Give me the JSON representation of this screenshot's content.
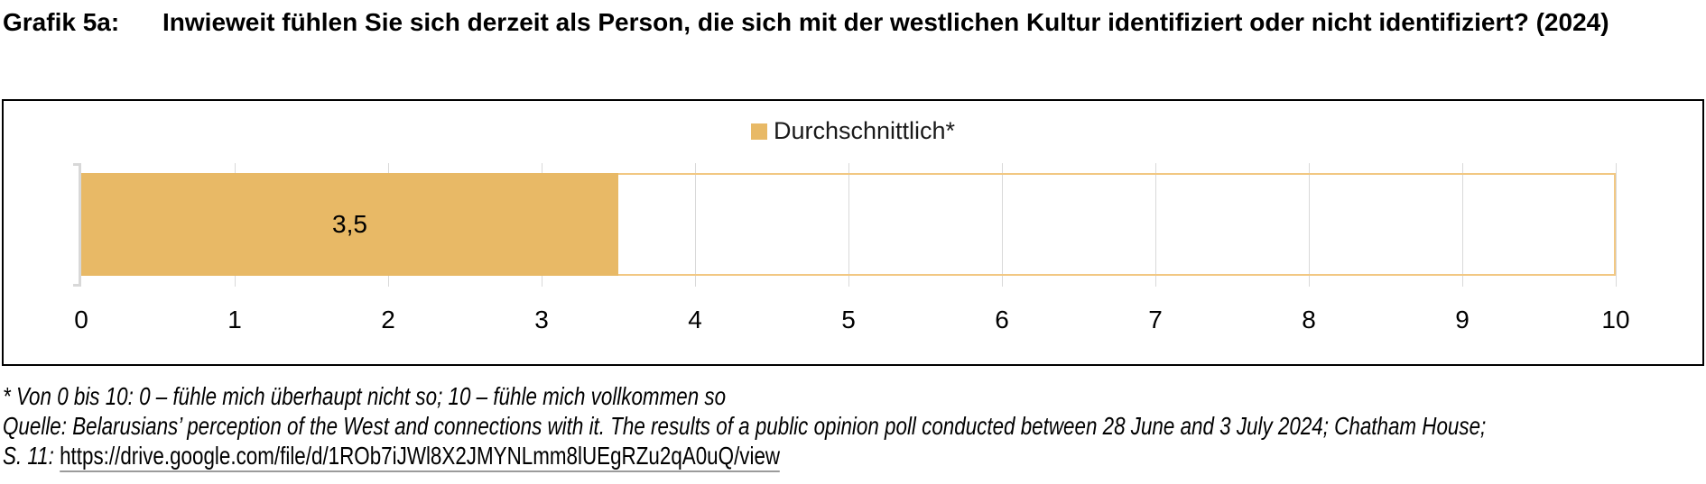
{
  "figure": {
    "label": "Grafik 5a:",
    "title": "Inwieweit fühlen Sie sich derzeit als Person, die sich mit der westlichen Kultur identifiziert oder nicht identifiziert? (2024)"
  },
  "legend": {
    "label": "Durchschnittlich*",
    "swatch_color": "#E8B966"
  },
  "chart_data": {
    "type": "bar",
    "orientation": "horizontal",
    "title": "Inwieweit fühlen Sie sich derzeit als Person, die sich mit der westlichen Kultur identifiziert oder nicht identifiziert? (2024)",
    "categories": [
      "Durchschnittlich*"
    ],
    "series": [
      {
        "name": "Durchschnittlich*",
        "values": [
          3.5
        ]
      }
    ],
    "value_labels": [
      "3,5"
    ],
    "xlim": [
      0,
      10
    ],
    "x_ticks": [
      0,
      1,
      2,
      3,
      4,
      5,
      6,
      7,
      8,
      9,
      10
    ],
    "grid": true,
    "legend_position": "top-center",
    "bar_color": "#E8B966",
    "outline_color": "#F2C883",
    "gridline_color": "#D9D9D9",
    "axis_line_color": "#D8D8D8"
  },
  "footnotes": {
    "asterisk_note": "* Von 0 bis 10: 0 – fühle mich überhaupt nicht so; 10 – fühle mich vollkommen so",
    "source_line": "Quelle: Belarusians’ perception of the West and connections with it. The results of a public opinion poll conducted between 28 June and 3 July 2024; Chatham House;",
    "source_prefix": "S. 11: ",
    "source_url": "https://drive.google.com/file/d/1ROb7iJWl8X2JMYNLmm8lUEgRZu2qA0uQ/view"
  }
}
